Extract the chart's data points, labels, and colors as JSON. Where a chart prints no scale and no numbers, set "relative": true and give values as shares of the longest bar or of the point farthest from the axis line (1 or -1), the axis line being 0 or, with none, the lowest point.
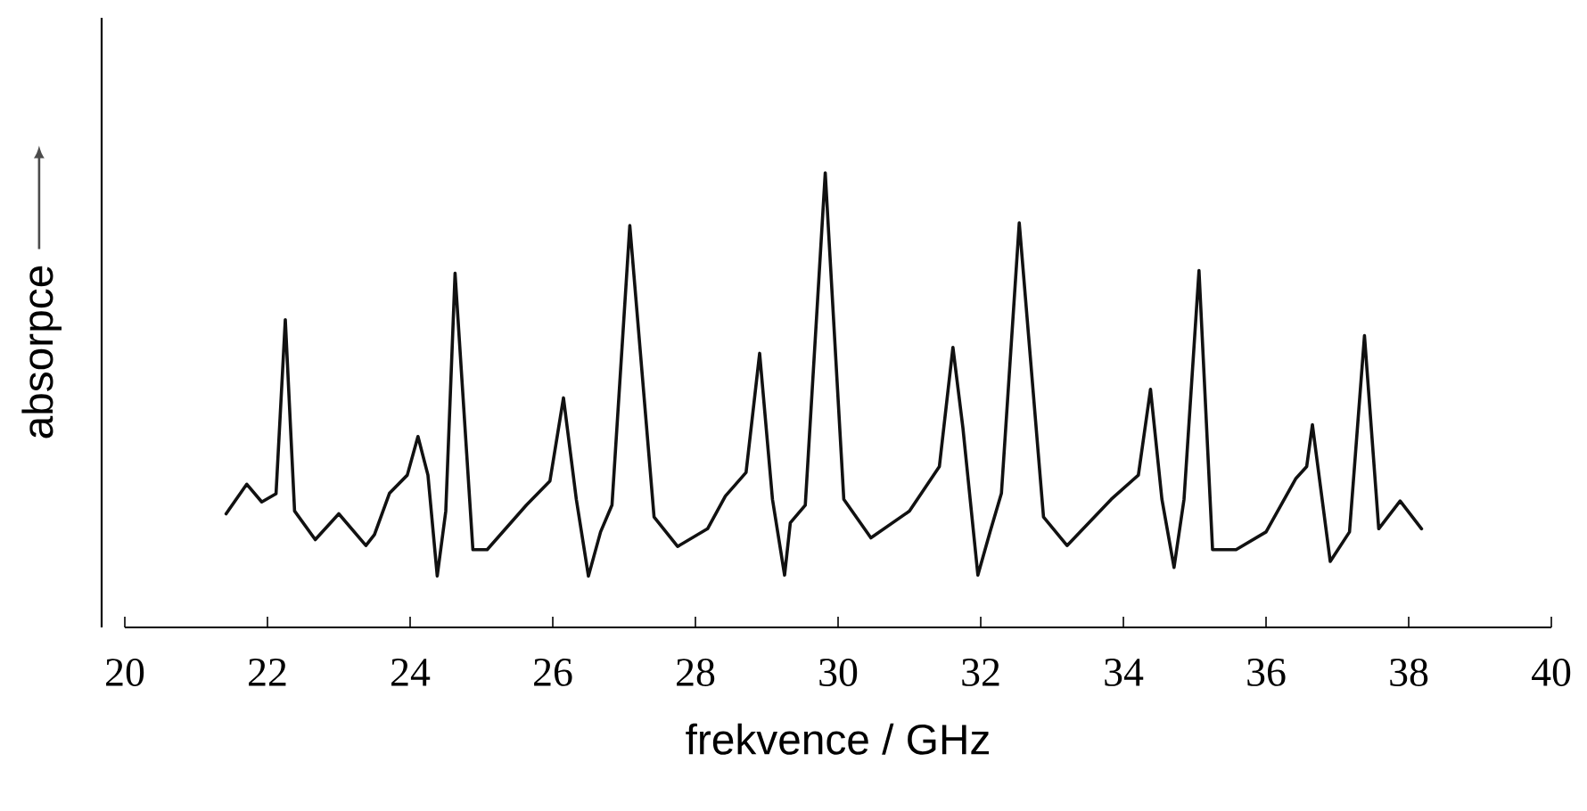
{
  "chart_data": {
    "type": "line",
    "xlabel": "frekvence / GHz",
    "ylabel": "absorpce",
    "relative": true,
    "xlim": [
      20,
      40
    ],
    "xticks": [
      20,
      22,
      24,
      26,
      28,
      30,
      32,
      34,
      36,
      38,
      40
    ],
    "marker": "none",
    "line_style": "solid",
    "series": [
      {
        "color": "#111111",
        "x": [
          21.42,
          21.71,
          21.92,
          22.12,
          22.25,
          22.38,
          22.67,
          23.0,
          23.38,
          23.5,
          23.71,
          23.96,
          24.11,
          24.25,
          24.38,
          24.5,
          24.63,
          24.88,
          25.08,
          25.63,
          25.96,
          26.15,
          26.33,
          26.5,
          26.67,
          26.83,
          27.08,
          27.42,
          27.75,
          28.17,
          28.42,
          28.71,
          28.9,
          29.08,
          29.25,
          29.33,
          29.54,
          29.82,
          30.08,
          30.46,
          31.0,
          31.42,
          31.61,
          31.75,
          31.96,
          32.13,
          32.29,
          32.54,
          32.88,
          33.21,
          33.83,
          34.21,
          34.38,
          34.54,
          34.71,
          34.85,
          35.06,
          35.25,
          35.58,
          36.0,
          36.42,
          36.57,
          36.65,
          36.9,
          37.17,
          37.38,
          37.58,
          37.88,
          38.18
        ],
        "values": [
          0.25,
          0.315,
          0.276,
          0.294,
          0.677,
          0.256,
          0.193,
          0.25,
          0.18,
          0.204,
          0.295,
          0.335,
          0.42,
          0.335,
          0.113,
          0.256,
          0.779,
          0.171,
          0.171,
          0.269,
          0.322,
          0.505,
          0.282,
          0.113,
          0.21,
          0.269,
          0.884,
          0.243,
          0.178,
          0.217,
          0.289,
          0.341,
          0.603,
          0.282,
          0.115,
          0.23,
          0.269,
          1.0,
          0.282,
          0.197,
          0.256,
          0.354,
          0.616,
          0.439,
          0.115,
          0.21,
          0.295,
          0.89,
          0.243,
          0.18,
          0.282,
          0.335,
          0.524,
          0.282,
          0.132,
          0.282,
          0.785,
          0.171,
          0.171,
          0.21,
          0.328,
          0.354,
          0.446,
          0.145,
          0.21,
          0.642,
          0.217,
          0.278,
          0.217
        ]
      }
    ]
  }
}
